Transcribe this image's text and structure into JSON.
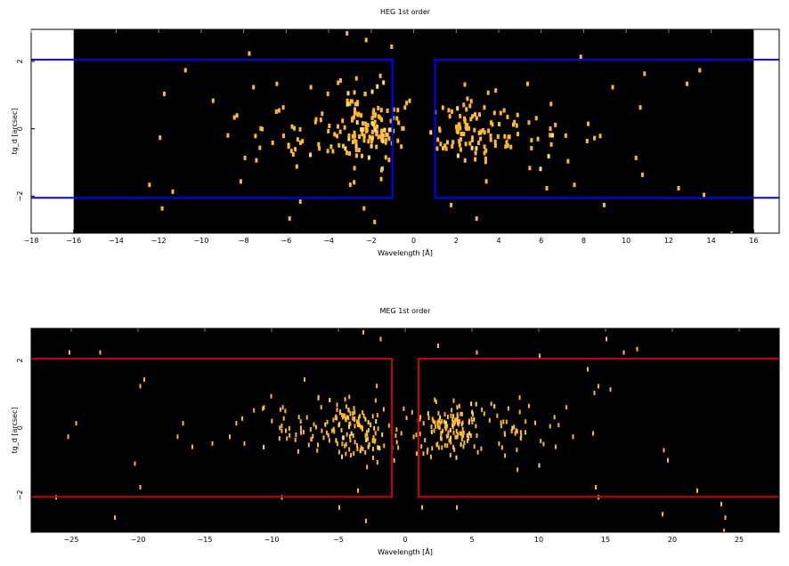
{
  "colors": {
    "background": "#000000",
    "counts": "#ffb830",
    "heg_region": "#0000ff",
    "meg_region": "#cc0000",
    "axis": "#000000"
  },
  "chart_data": [
    {
      "type": "heatmap",
      "title": "HEG 1st order",
      "xlabel": "Wavelength [Å]",
      "ylabel": "tg_d [arcsec]",
      "xlim": [
        -18,
        17.2
      ],
      "ylim": [
        -3.1,
        2.95
      ],
      "data_xlim": [
        -16,
        16
      ],
      "x_ticks": [
        -18,
        -16,
        -14,
        -12,
        -10,
        -8,
        -6,
        -4,
        -2,
        0,
        2,
        4,
        6,
        8,
        10,
        12,
        14,
        16
      ],
      "y_ticks": [
        -2,
        0,
        2
      ],
      "regions": [
        {
          "x": [
            -20,
            -1
          ],
          "y": [
            -2.05,
            2.05
          ]
        },
        {
          "x": [
            1,
            20
          ],
          "y": [
            -2.05,
            2.05
          ]
        }
      ],
      "clusters": [
        {
          "cx": -2.2,
          "cy": 0,
          "sx": 0.9,
          "sy": 0.55,
          "n": 130
        },
        {
          "cx": -5.5,
          "cy": 0,
          "sx": 1.7,
          "sy": 0.45,
          "n": 40
        },
        {
          "cx": 2.5,
          "cy": 0,
          "sx": 0.9,
          "sy": 0.5,
          "n": 90
        },
        {
          "cx": 5.5,
          "cy": 0,
          "sx": 1.6,
          "sy": 0.45,
          "n": 30
        }
      ],
      "scattered": [
        [
          -3.2,
          2.9
        ],
        [
          -2.3,
          2.7
        ],
        [
          -1.1,
          2.5
        ],
        [
          -7.8,
          2.3
        ],
        [
          -10.8,
          1.8
        ],
        [
          -7.6,
          1.3
        ],
        [
          -6.5,
          1.4
        ],
        [
          -4.9,
          1.3
        ],
        [
          -4.1,
          1.1
        ],
        [
          -3.5,
          1.5
        ],
        [
          -11.8,
          1.1
        ],
        [
          -9.5,
          0.9
        ],
        [
          -12.0,
          -0.2
        ],
        [
          -8.5,
          0.4
        ],
        [
          -6.2,
          0.7
        ],
        [
          -2.8,
          0.8
        ],
        [
          -7.3,
          -0.5
        ],
        [
          -8.0,
          -0.8
        ],
        [
          -8.2,
          -1.5
        ],
        [
          -12.5,
          -1.6
        ],
        [
          -11.4,
          -1.8
        ],
        [
          -5.4,
          -2.1
        ],
        [
          -5.9,
          -2.6
        ],
        [
          -2.4,
          -2.3
        ],
        [
          -1.9,
          -2.7
        ],
        [
          -11.9,
          -2.3
        ],
        [
          3.8,
          1.2
        ],
        [
          5.3,
          1.4
        ],
        [
          7.8,
          2.2
        ],
        [
          9.3,
          1.3
        ],
        [
          10.8,
          1.7
        ],
        [
          12.8,
          1.4
        ],
        [
          13.4,
          1.8
        ],
        [
          6.4,
          0.8
        ],
        [
          10.6,
          0.7
        ],
        [
          10.4,
          -0.8
        ],
        [
          7.2,
          -0.9
        ],
        [
          6.2,
          -1.7
        ],
        [
          7.5,
          -1.6
        ],
        [
          8.9,
          -2.2
        ],
        [
          10.7,
          -1.3
        ],
        [
          12.4,
          -1.7
        ],
        [
          13.6,
          -1.9
        ],
        [
          2.9,
          -2.6
        ],
        [
          1.7,
          -2.2
        ],
        [
          5.4,
          -1.1
        ],
        [
          14.9,
          -3.05
        ],
        [
          8.1,
          -0.3
        ]
      ]
    },
    {
      "type": "heatmap",
      "title": "MEG 1st order",
      "xlabel": "Wavelength [Å]",
      "ylabel": "tg_d [arcsec]",
      "xlim": [
        -28,
        28
      ],
      "ylim": [
        -3.1,
        2.95
      ],
      "data_xlim": [
        -28,
        28
      ],
      "x_ticks": [
        -25,
        -20,
        -15,
        -10,
        -5,
        0,
        5,
        10,
        15,
        20,
        25
      ],
      "y_ticks": [
        -2,
        0,
        2
      ],
      "regions": [
        {
          "x": [
            -30,
            -1
          ],
          "y": [
            -2.05,
            2.05
          ]
        },
        {
          "x": [
            1,
            30
          ],
          "y": [
            -2.05,
            2.05
          ]
        }
      ],
      "clusters": [
        {
          "cx": -3.5,
          "cy": 0,
          "sx": 1.4,
          "sy": 0.45,
          "n": 120
        },
        {
          "cx": -8.0,
          "cy": 0,
          "sx": 2.2,
          "sy": 0.4,
          "n": 50
        },
        {
          "cx": 3.0,
          "cy": 0,
          "sx": 1.5,
          "sy": 0.45,
          "n": 120
        },
        {
          "cx": 7.5,
          "cy": 0,
          "sx": 2.0,
          "sy": 0.4,
          "n": 50
        }
      ],
      "scattered": [
        [
          -25.2,
          2.3
        ],
        [
          -22.9,
          2.3
        ],
        [
          -3.2,
          2.9
        ],
        [
          -1.9,
          2.7
        ],
        [
          2.4,
          2.5
        ],
        [
          5.3,
          2.3
        ],
        [
          10.0,
          2.2
        ],
        [
          16.3,
          2.3
        ],
        [
          17.3,
          2.4
        ],
        [
          15.0,
          2.7
        ],
        [
          -19.9,
          1.3
        ],
        [
          -19.6,
          1.5
        ],
        [
          -7.6,
          1.5
        ],
        [
          -10.1,
          1.0
        ],
        [
          -12.1,
          -0.4
        ],
        [
          -13.2,
          -0.2
        ],
        [
          -25.3,
          -0.2
        ],
        [
          -24.7,
          0.2
        ],
        [
          -20.3,
          -1.0
        ],
        [
          -19.9,
          -1.7
        ],
        [
          -21.8,
          -2.6
        ],
        [
          -26.2,
          -2.0
        ],
        [
          -16.7,
          0.2
        ],
        [
          -17.1,
          -0.2
        ],
        [
          -16.0,
          -0.5
        ],
        [
          -5.0,
          -2.3
        ],
        [
          -9.3,
          -2.0
        ],
        [
          -3.6,
          -1.8
        ],
        [
          14.1,
          1.1
        ],
        [
          14.4,
          1.3
        ],
        [
          13.6,
          1.8
        ],
        [
          15.3,
          1.2
        ],
        [
          19.3,
          -0.6
        ],
        [
          19.6,
          -0.9
        ],
        [
          21.8,
          -1.8
        ],
        [
          14.2,
          -1.7
        ],
        [
          14.4,
          -2.0
        ],
        [
          19.2,
          -2.5
        ],
        [
          23.6,
          -2.2
        ],
        [
          23.9,
          -2.6
        ],
        [
          23.8,
          -3.0
        ],
        [
          3.8,
          -2.3
        ],
        [
          12.5,
          -0.2
        ],
        [
          11.2,
          -0.5
        ],
        [
          14.0,
          -0.1
        ],
        [
          -14.5,
          -0.4
        ],
        [
          -3.0,
          -2.7
        ],
        [
          1.2,
          -2.3
        ]
      ]
    }
  ]
}
